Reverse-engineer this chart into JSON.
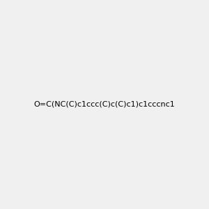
{
  "smiles": "O=C(NC(C)c1ccc(C)c(C)c1)c1cccnc1",
  "image_size": 300,
  "background_color": "#f0f0f0"
}
